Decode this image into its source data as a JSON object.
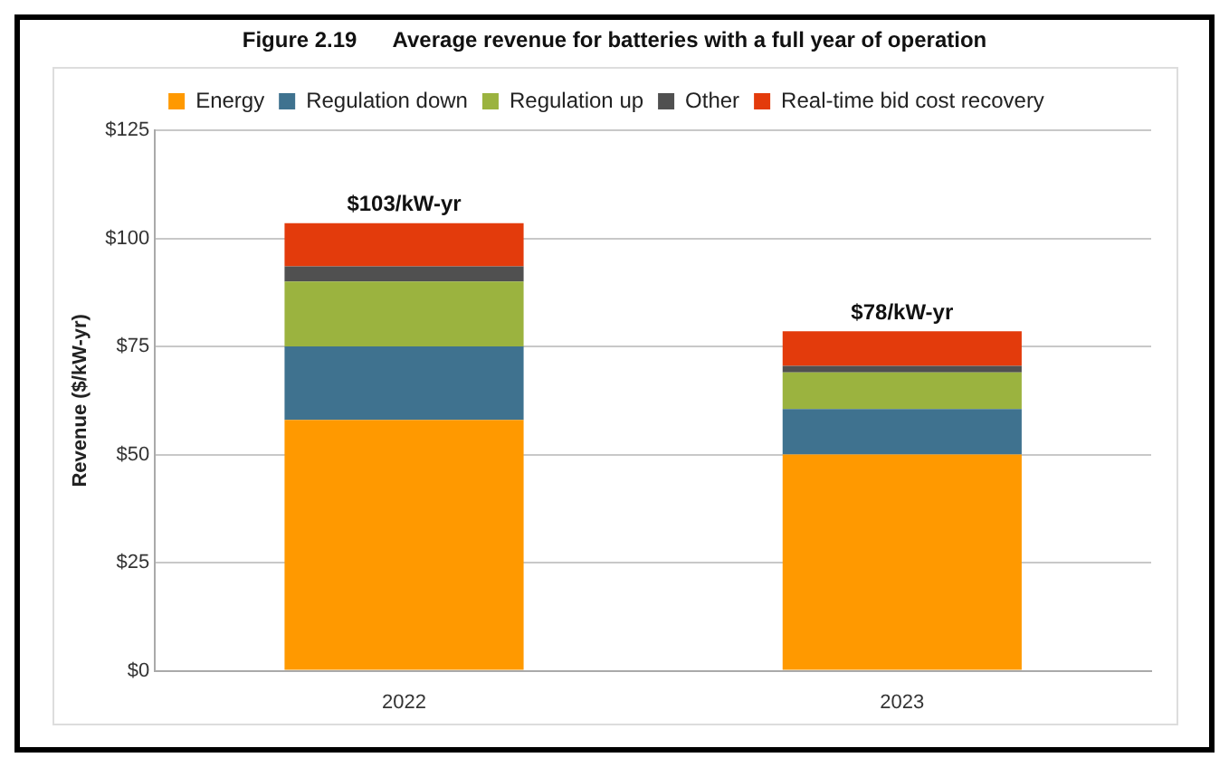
{
  "chart_data": {
    "type": "bar",
    "stacked": true,
    "title": "Figure 2.19      Average revenue for batteries with a full year of operation",
    "ylabel": "Revenue ($/kW-yr)",
    "categories": [
      "2022",
      "2023"
    ],
    "series": [
      {
        "name": "Energy",
        "color": "#ff9900",
        "values": [
          58,
          50
        ]
      },
      {
        "name": "Regulation down",
        "color": "#3f728f",
        "values": [
          17,
          10.5
        ]
      },
      {
        "name": "Regulation up",
        "color": "#9bb33f",
        "values": [
          15,
          8.5
        ]
      },
      {
        "name": "Other",
        "color": "#505050",
        "values": [
          3.5,
          1.5
        ]
      },
      {
        "name": "Real-time bid cost recovery",
        "color": "#e33b0c",
        "values": [
          10,
          8
        ]
      }
    ],
    "totals": [
      "$103/kW-yr",
      "$78/kW-yr"
    ],
    "ylim": [
      0,
      125
    ],
    "yticks": [
      {
        "value": 0,
        "label": "$0"
      },
      {
        "value": 25,
        "label": "$25"
      },
      {
        "value": 50,
        "label": "$50"
      },
      {
        "value": 75,
        "label": "$75"
      },
      {
        "value": 100,
        "label": "$100"
      },
      {
        "value": 125,
        "label": "$125"
      }
    ],
    "grid": "y",
    "legend": "top"
  }
}
